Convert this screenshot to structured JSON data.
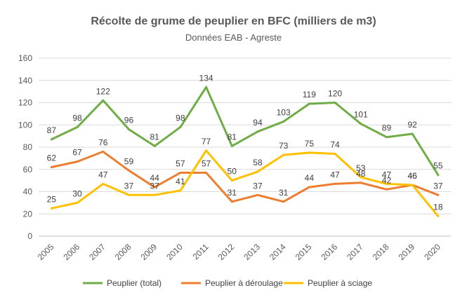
{
  "chart_data": {
    "type": "line",
    "title": "Récolte de grume de peuplier en BFC (milliers de m3)",
    "subtitle": "Données EAB - Agreste",
    "xlabel": "",
    "ylabel": "",
    "ylim": [
      0,
      160
    ],
    "yticks": [
      "0",
      "20",
      "40",
      "60",
      "80",
      "100",
      "120",
      "140",
      "160"
    ],
    "grid": true,
    "legend_position": "bottom",
    "categories": [
      "2005",
      "2006",
      "2007",
      "2008",
      "2009",
      "2010",
      "2011",
      "2012",
      "2013",
      "2014",
      "2015",
      "2016",
      "2017",
      "2018",
      "2019",
      "2020"
    ],
    "series": [
      {
        "name": "Peuplier (total)",
        "color": "#70AD47",
        "values": [
          87,
          98,
          122,
          96,
          81,
          98,
          134,
          81,
          94,
          103,
          119,
          120,
          101,
          89,
          92,
          55
        ]
      },
      {
        "name": "Peuplier à déroulage",
        "color": "#ED7D31",
        "values": [
          62,
          67,
          76,
          59,
          44,
          57,
          57,
          31,
          37,
          31,
          44,
          47,
          48,
          42,
          46,
          37
        ]
      },
      {
        "name": "Peuplier à sciage",
        "color": "#FFC000",
        "values": [
          25,
          30,
          47,
          37,
          37,
          41,
          77,
          50,
          58,
          73,
          75,
          74,
          53,
          47,
          46,
          18
        ]
      }
    ],
    "data_labels": [
      [
        "87",
        "98",
        "122",
        "96",
        "81",
        "98",
        "134",
        "81",
        "94",
        "103",
        "119",
        "120",
        "101",
        "89",
        "92",
        "55"
      ],
      [
        "62",
        "67",
        "76",
        "59",
        "44",
        "57",
        "57",
        "31",
        "37",
        "31",
        "44",
        "47",
        "48",
        "42",
        "46",
        "37"
      ],
      [
        "25",
        "30",
        "47",
        "37",
        "37",
        "41",
        "77",
        "50",
        "58",
        "73",
        "75",
        "74",
        "53",
        "47",
        "46",
        "18"
      ]
    ]
  }
}
